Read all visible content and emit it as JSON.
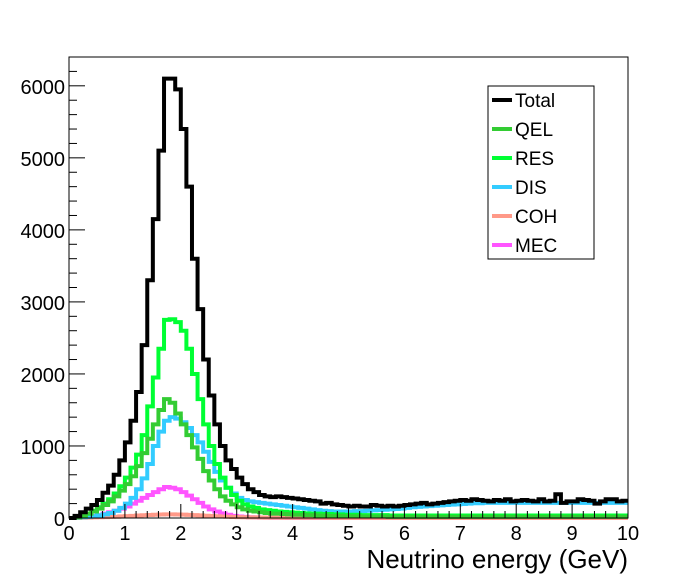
{
  "chart_data": {
    "type": "line",
    "step": true,
    "title": "",
    "xlabel": "Neutrino energy (GeV)",
    "ylabel": "",
    "xlim": [
      0,
      10
    ],
    "ylim": [
      0,
      6400
    ],
    "bin_width": 0.1,
    "x_ticks": [
      "0",
      "1",
      "2",
      "3",
      "4",
      "5",
      "6",
      "7",
      "8",
      "9",
      "10"
    ],
    "y_ticks": [
      "0",
      "1000",
      "2000",
      "3000",
      "4000",
      "5000",
      "6000"
    ],
    "grid": false,
    "legend_position": "top-right",
    "series": [
      {
        "name": "Total",
        "color": "#000000",
        "values": [
          0,
          30,
          80,
          130,
          180,
          250,
          350,
          450,
          600,
          800,
          1050,
          1350,
          1750,
          2400,
          3300,
          4150,
          5100,
          6100,
          6100,
          5950,
          5400,
          4600,
          3600,
          2900,
          2200,
          1700,
          1300,
          1000,
          800,
          680,
          560,
          470,
          400,
          360,
          320,
          300,
          290,
          300,
          290,
          280,
          270,
          260,
          250,
          240,
          230,
          200,
          210,
          190,
          180,
          170,
          160,
          170,
          160,
          160,
          180,
          170,
          160,
          170,
          160,
          170,
          180,
          190,
          200,
          210,
          190,
          200,
          210,
          220,
          230,
          240,
          250,
          240,
          260,
          250,
          240,
          230,
          250,
          240,
          260,
          230,
          240,
          250,
          240,
          230,
          260,
          230,
          240,
          330,
          210,
          230,
          230,
          260,
          250,
          240,
          200,
          230,
          260,
          260,
          230,
          240
        ]
      },
      {
        "name": "QEL",
        "color": "#33cc33",
        "values": [
          0,
          10,
          30,
          60,
          90,
          130,
          180,
          230,
          300,
          380,
          470,
          580,
          720,
          900,
          1100,
          1300,
          1500,
          1650,
          1600,
          1450,
          1300,
          1150,
          980,
          820,
          650,
          520,
          400,
          300,
          240,
          190,
          150,
          120,
          100,
          90,
          80,
          70,
          60,
          60,
          55,
          50,
          45,
          45,
          40,
          40,
          35,
          35,
          30,
          30,
          30,
          25,
          25,
          25,
          20,
          20,
          20,
          20,
          20,
          15,
          15,
          15,
          15,
          15,
          15,
          15,
          15,
          15,
          15,
          15,
          15,
          15,
          15,
          15,
          15,
          15,
          15,
          15,
          15,
          15,
          15,
          15,
          15,
          15,
          15,
          15,
          15,
          15,
          15,
          15,
          15,
          15,
          15,
          15,
          15,
          15,
          15,
          15,
          15,
          15,
          15,
          15
        ]
      },
      {
        "name": "RES",
        "color": "#00ff33",
        "values": [
          0,
          10,
          30,
          60,
          100,
          150,
          200,
          260,
          340,
          440,
          560,
          700,
          880,
          1150,
          1550,
          1950,
          2350,
          2750,
          2760,
          2720,
          2600,
          2350,
          2000,
          1650,
          1300,
          1000,
          750,
          560,
          420,
          320,
          240,
          190,
          160,
          140,
          120,
          110,
          100,
          90,
          85,
          80,
          75,
          70,
          65,
          60,
          60,
          55,
          55,
          50,
          50,
          45,
          45,
          45,
          40,
          40,
          40,
          40,
          40,
          35,
          35,
          35,
          35,
          35,
          35,
          35,
          35,
          35,
          35,
          35,
          35,
          35,
          35,
          35,
          35,
          35,
          35,
          35,
          35,
          35,
          35,
          35,
          35,
          35,
          35,
          35,
          35,
          35,
          35,
          35,
          35,
          35,
          35,
          35,
          35,
          35,
          35,
          35,
          35,
          35,
          35,
          35
        ]
      },
      {
        "name": "DIS",
        "color": "#33ccff",
        "values": [
          0,
          5,
          10,
          15,
          25,
          35,
          50,
          70,
          100,
          140,
          200,
          280,
          400,
          550,
          750,
          1000,
          1200,
          1350,
          1400,
          1380,
          1330,
          1250,
          1150,
          1050,
          920,
          780,
          640,
          520,
          420,
          340,
          280,
          250,
          230,
          220,
          210,
          200,
          190,
          180,
          170,
          160,
          150,
          140,
          130,
          120,
          110,
          100,
          95,
          90,
          90,
          90,
          90,
          95,
          95,
          100,
          105,
          110,
          115,
          120,
          125,
          130,
          140,
          150,
          155,
          160,
          165,
          170,
          175,
          180,
          185,
          190,
          195,
          200,
          205,
          205,
          210,
          210,
          210,
          210,
          210,
          210,
          210,
          210,
          210,
          210,
          210,
          210,
          210,
          210,
          210,
          210,
          210,
          210,
          210,
          210,
          210,
          210,
          210,
          210,
          210,
          210
        ]
      },
      {
        "name": "COH",
        "color": "#ff9988",
        "values": [
          0,
          2,
          4,
          6,
          8,
          10,
          12,
          15,
          18,
          22,
          26,
          30,
          34,
          38,
          42,
          45,
          48,
          50,
          50,
          49,
          47,
          44,
          40,
          36,
          32,
          28,
          24,
          20,
          17,
          14,
          12,
          10,
          9,
          8,
          7,
          6,
          5,
          5,
          4,
          4,
          4,
          3,
          3,
          3,
          3,
          3,
          2,
          2,
          2,
          2,
          2,
          2,
          2,
          2,
          2,
          2,
          2,
          2,
          2,
          2,
          2,
          2,
          2,
          2,
          2,
          2,
          2,
          2,
          2,
          2,
          2,
          2,
          2,
          2,
          2,
          2,
          2,
          2,
          2,
          2,
          2,
          2,
          2,
          2,
          2,
          2,
          2,
          2,
          2,
          2,
          2,
          2,
          2,
          2,
          2,
          2,
          2,
          2,
          2,
          2
        ]
      },
      {
        "name": "MEC",
        "color": "#ff55ff",
        "values": [
          0,
          5,
          10,
          20,
          30,
          40,
          60,
          80,
          100,
          130,
          160,
          200,
          240,
          280,
          320,
          360,
          400,
          430,
          420,
          400,
          360,
          310,
          260,
          210,
          160,
          120,
          90,
          65,
          45,
          30,
          20,
          15,
          10,
          8,
          6,
          5,
          4,
          3,
          3,
          2,
          2,
          2,
          2,
          2,
          2,
          2,
          2,
          2,
          2,
          2,
          2,
          2,
          2,
          2,
          2,
          2,
          2,
          2,
          2,
          2,
          2,
          2,
          2,
          2,
          2,
          2,
          2,
          2,
          2,
          2,
          2,
          2,
          2,
          2,
          2,
          2,
          2,
          2,
          2,
          2,
          2,
          2,
          2,
          2,
          2,
          2,
          2,
          2,
          2,
          2,
          2,
          2,
          2,
          2,
          2,
          2,
          2,
          2,
          2,
          2
        ]
      }
    ]
  }
}
